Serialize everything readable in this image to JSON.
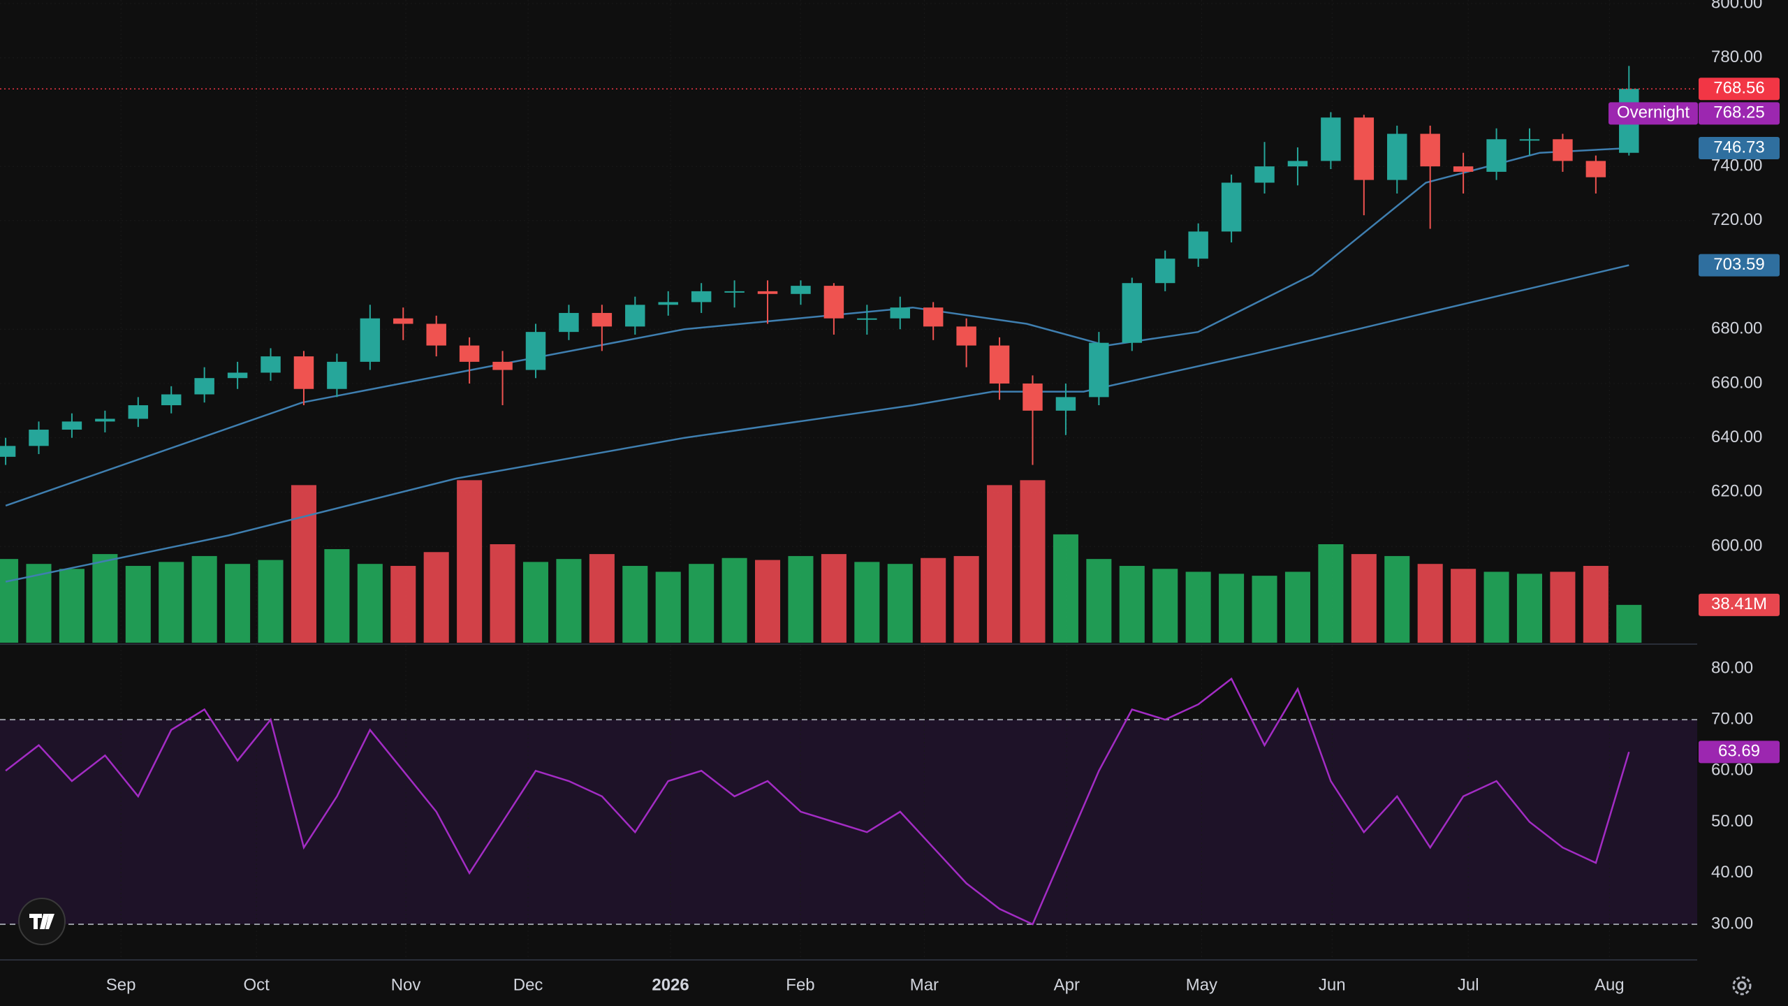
{
  "chart_data": {
    "type": "candlestick",
    "xlim": [
      -0.17,
      51.06
    ],
    "xticks": [
      {
        "value": 3.48,
        "label": "Sep"
      },
      {
        "value": 7.57,
        "label": "Oct"
      },
      {
        "value": 12.08,
        "label": "Nov"
      },
      {
        "value": 15.77,
        "label": "Dec"
      },
      {
        "value": 20.07,
        "label": "2026"
      },
      {
        "value": 23.99,
        "label": "Feb"
      },
      {
        "value": 27.73,
        "label": "Mar"
      },
      {
        "value": 32.03,
        "label": "Apr"
      },
      {
        "value": 36.1,
        "label": "May"
      },
      {
        "value": 40.04,
        "label": "Jun"
      },
      {
        "value": 44.15,
        "label": "Jul"
      },
      {
        "value": 48.41,
        "label": "Aug"
      }
    ],
    "ylim": [
      564.5,
      801.3
    ],
    "yticks": [
      {
        "value": 600,
        "label": "600.00"
      },
      {
        "value": 620,
        "label": "620.00"
      },
      {
        "value": 640,
        "label": "640.00"
      },
      {
        "value": 660,
        "label": "660.00"
      },
      {
        "value": 680,
        "label": "680.00"
      },
      {
        "value": 720,
        "label": "720.00"
      },
      {
        "value": 740,
        "label": "740.00"
      },
      {
        "value": 780,
        "label": "780.00"
      },
      {
        "value": 800,
        "label": "800.00"
      }
    ],
    "up_color": "#26a69a",
    "down_color": "#ef5350",
    "candles": {
      "open": [
        633,
        637,
        643,
        646,
        647,
        652,
        656,
        662,
        664,
        670,
        658,
        668,
        684,
        682,
        674,
        668,
        665,
        679,
        686,
        681,
        689,
        690,
        694,
        694,
        693,
        696,
        684,
        684,
        688,
        681,
        674,
        660,
        650,
        655,
        675,
        697,
        706,
        716,
        734,
        740,
        742,
        758,
        735,
        752,
        740,
        738,
        750,
        750,
        742,
        745
      ],
      "high": [
        640,
        646,
        649,
        650,
        655,
        659,
        666,
        668,
        673,
        672,
        671,
        689,
        688,
        685,
        677,
        672,
        682,
        689,
        689,
        692,
        694,
        697,
        698,
        698,
        698,
        697,
        689,
        692,
        690,
        684,
        677,
        663,
        660,
        679,
        699,
        709,
        719,
        737,
        749,
        747,
        760,
        759,
        755,
        755,
        745,
        754,
        754,
        752,
        744,
        777
      ],
      "low": [
        630,
        634,
        640,
        642,
        644,
        649,
        653,
        658,
        661,
        652,
        655,
        665,
        676,
        670,
        660,
        652,
        662,
        676,
        672,
        678,
        685,
        686,
        688,
        682,
        689,
        678,
        678,
        680,
        676,
        666,
        654,
        630,
        641,
        652,
        672,
        694,
        703,
        712,
        730,
        733,
        739,
        722,
        730,
        717,
        730,
        735,
        744,
        738,
        730,
        744
      ],
      "close": [
        637,
        643,
        646,
        647,
        652,
        656,
        662,
        664,
        670,
        658,
        668,
        684,
        682,
        674,
        668,
        665,
        679,
        686,
        681,
        689,
        690,
        694,
        694,
        693,
        696,
        684,
        684,
        688,
        681,
        674,
        660,
        650,
        655,
        675,
        697,
        706,
        716,
        734,
        740,
        742,
        758,
        735,
        752,
        740,
        738,
        750,
        750,
        742,
        736,
        768.56
      ]
    },
    "overnight": {
      "label": "Overnight",
      "value": 768.25
    },
    "moving_averages": [
      {
        "color": "#3f7fb0",
        "x": [
          0,
          8.95,
          15.33,
          20.49,
          27.38,
          30.82,
          33.23,
          35.99,
          39.43,
          42.87,
          46.31,
          49
        ],
        "values": [
          615,
          653,
          668,
          680,
          688,
          682,
          674,
          679,
          700,
          734,
          745,
          746.73
        ]
      },
      {
        "color": "#3f7fb0",
        "x": [
          0,
          6.72,
          13.6,
          20.49,
          27.38,
          29.79,
          32.54,
          37.7,
          42.87,
          49
        ],
        "values": [
          587,
          604,
          625,
          640,
          652,
          657,
          657,
          671,
          686,
          703.59
        ]
      }
    ],
    "volume": {
      "vlim": [
        0,
        200
      ],
      "up_color": "#22ab5c",
      "down_color": "#e8474f",
      "values": [
        85,
        80,
        75,
        90,
        78,
        82,
        88,
        80,
        84,
        160,
        95,
        80,
        78,
        92,
        165,
        100,
        82,
        85,
        90,
        78,
        72,
        80,
        86,
        84,
        88,
        90,
        82,
        80,
        86,
        88,
        160,
        165,
        110,
        85,
        78,
        75,
        72,
        70,
        68,
        72,
        100,
        90,
        88,
        80,
        75,
        72,
        70,
        72,
        78,
        38.41
      ],
      "value_labels": [
        null,
        null,
        null,
        null,
        null,
        null,
        null,
        null,
        null,
        null,
        null,
        null,
        null,
        null,
        null,
        null,
        null,
        null,
        null,
        null,
        null,
        null,
        null,
        null,
        null,
        null,
        null,
        null,
        null,
        null,
        null,
        null,
        null,
        null,
        null,
        null,
        null,
        null,
        null,
        null,
        null,
        null,
        null,
        null,
        null,
        null,
        null,
        null,
        null,
        "38.41M"
      ]
    },
    "rsi": {
      "color": "#a32cc4",
      "ylim": [
        23.3,
        84.5
      ],
      "bands": [
        70,
        30
      ],
      "yticks": [
        {
          "value": 30,
          "label": "30.00"
        },
        {
          "value": 40,
          "label": "40.00"
        },
        {
          "value": 50,
          "label": "50.00"
        },
        {
          "value": 60,
          "label": "60.00"
        },
        {
          "value": 70,
          "label": "70.00"
        },
        {
          "value": 80,
          "label": "80.00"
        }
      ],
      "values": [
        60,
        65,
        58,
        63,
        55,
        68,
        72,
        62,
        70,
        45,
        55,
        68,
        60,
        52,
        40,
        50,
        60,
        58,
        55,
        48,
        58,
        60,
        55,
        58,
        52,
        50,
        48,
        52,
        45,
        38,
        33,
        30,
        45,
        60,
        72,
        70,
        73,
        78,
        65,
        76,
        58,
        48,
        55,
        45,
        55,
        58,
        50,
        45,
        42,
        63.69
      ]
    }
  }
}
